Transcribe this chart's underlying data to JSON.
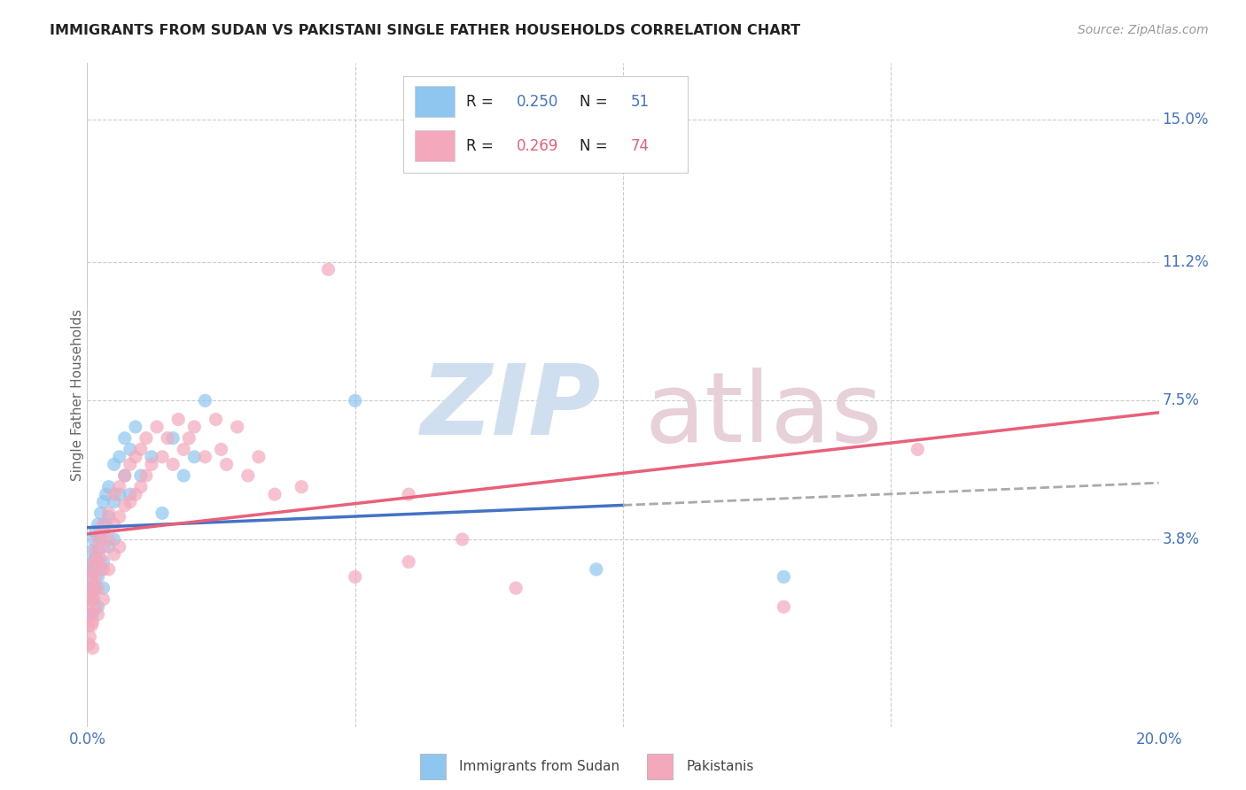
{
  "title": "IMMIGRANTS FROM SUDAN VS PAKISTANI SINGLE FATHER HOUSEHOLDS CORRELATION CHART",
  "source": "Source: ZipAtlas.com",
  "ylabel": "Single Father Households",
  "xlim": [
    0.0,
    0.2
  ],
  "ylim": [
    -0.012,
    0.165
  ],
  "xtick_positions": [
    0.0,
    0.05,
    0.1,
    0.15,
    0.2
  ],
  "xticklabels": [
    "0.0%",
    "",
    "",
    "",
    "20.0%"
  ],
  "ytick_positions": [
    0.038,
    0.075,
    0.112,
    0.15
  ],
  "ytick_labels": [
    "3.8%",
    "7.5%",
    "11.2%",
    "15.0%"
  ],
  "blue_color": "#8ec6f0",
  "pink_color": "#f4a8bb",
  "blue_line_color": "#4472c4",
  "pink_line_color": "#e8607a",
  "sudan_R": "0.250",
  "sudan_N": "51",
  "pak_R": "0.269",
  "pak_N": "74",
  "legend_text_color": "#333333",
  "legend_num_color": "#4472c4",
  "sudan_points": [
    [
      0.0002,
      0.025
    ],
    [
      0.0003,
      0.018
    ],
    [
      0.0005,
      0.03
    ],
    [
      0.0005,
      0.022
    ],
    [
      0.0008,
      0.035
    ],
    [
      0.0008,
      0.027
    ],
    [
      0.001,
      0.032
    ],
    [
      0.001,
      0.025
    ],
    [
      0.001,
      0.018
    ],
    [
      0.0012,
      0.038
    ],
    [
      0.0012,
      0.03
    ],
    [
      0.0012,
      0.022
    ],
    [
      0.0015,
      0.04
    ],
    [
      0.0015,
      0.033
    ],
    [
      0.0015,
      0.025
    ],
    [
      0.002,
      0.042
    ],
    [
      0.002,
      0.035
    ],
    [
      0.002,
      0.028
    ],
    [
      0.002,
      0.02
    ],
    [
      0.0025,
      0.045
    ],
    [
      0.0025,
      0.038
    ],
    [
      0.0025,
      0.03
    ],
    [
      0.003,
      0.048
    ],
    [
      0.003,
      0.04
    ],
    [
      0.003,
      0.032
    ],
    [
      0.003,
      0.025
    ],
    [
      0.0035,
      0.05
    ],
    [
      0.0035,
      0.042
    ],
    [
      0.004,
      0.052
    ],
    [
      0.004,
      0.044
    ],
    [
      0.004,
      0.036
    ],
    [
      0.005,
      0.058
    ],
    [
      0.005,
      0.048
    ],
    [
      0.005,
      0.038
    ],
    [
      0.006,
      0.06
    ],
    [
      0.006,
      0.05
    ],
    [
      0.007,
      0.065
    ],
    [
      0.007,
      0.055
    ],
    [
      0.008,
      0.062
    ],
    [
      0.008,
      0.05
    ],
    [
      0.009,
      0.068
    ],
    [
      0.01,
      0.055
    ],
    [
      0.012,
      0.06
    ],
    [
      0.014,
      0.045
    ],
    [
      0.016,
      0.065
    ],
    [
      0.018,
      0.055
    ],
    [
      0.02,
      0.06
    ],
    [
      0.022,
      0.075
    ],
    [
      0.05,
      0.075
    ],
    [
      0.095,
      0.03
    ],
    [
      0.13,
      0.028
    ]
  ],
  "pakistani_points": [
    [
      0.0001,
      0.02
    ],
    [
      0.0002,
      0.015
    ],
    [
      0.0003,
      0.022
    ],
    [
      0.0003,
      0.01
    ],
    [
      0.0005,
      0.025
    ],
    [
      0.0005,
      0.018
    ],
    [
      0.0005,
      0.012
    ],
    [
      0.0008,
      0.028
    ],
    [
      0.0008,
      0.022
    ],
    [
      0.0008,
      0.015
    ],
    [
      0.001,
      0.03
    ],
    [
      0.001,
      0.023
    ],
    [
      0.001,
      0.016
    ],
    [
      0.001,
      0.009
    ],
    [
      0.0012,
      0.032
    ],
    [
      0.0012,
      0.025
    ],
    [
      0.0015,
      0.035
    ],
    [
      0.0015,
      0.028
    ],
    [
      0.0015,
      0.02
    ],
    [
      0.002,
      0.038
    ],
    [
      0.002,
      0.032
    ],
    [
      0.002,
      0.025
    ],
    [
      0.002,
      0.018
    ],
    [
      0.0025,
      0.04
    ],
    [
      0.0025,
      0.033
    ],
    [
      0.003,
      0.042
    ],
    [
      0.003,
      0.036
    ],
    [
      0.003,
      0.03
    ],
    [
      0.003,
      0.022
    ],
    [
      0.004,
      0.045
    ],
    [
      0.004,
      0.038
    ],
    [
      0.004,
      0.03
    ],
    [
      0.005,
      0.05
    ],
    [
      0.005,
      0.042
    ],
    [
      0.005,
      0.034
    ],
    [
      0.006,
      0.052
    ],
    [
      0.006,
      0.044
    ],
    [
      0.006,
      0.036
    ],
    [
      0.007,
      0.055
    ],
    [
      0.007,
      0.047
    ],
    [
      0.008,
      0.058
    ],
    [
      0.008,
      0.048
    ],
    [
      0.009,
      0.06
    ],
    [
      0.009,
      0.05
    ],
    [
      0.01,
      0.062
    ],
    [
      0.01,
      0.052
    ],
    [
      0.011,
      0.065
    ],
    [
      0.011,
      0.055
    ],
    [
      0.012,
      0.058
    ],
    [
      0.013,
      0.068
    ],
    [
      0.014,
      0.06
    ],
    [
      0.015,
      0.065
    ],
    [
      0.016,
      0.058
    ],
    [
      0.017,
      0.07
    ],
    [
      0.018,
      0.062
    ],
    [
      0.019,
      0.065
    ],
    [
      0.02,
      0.068
    ],
    [
      0.022,
      0.06
    ],
    [
      0.024,
      0.07
    ],
    [
      0.025,
      0.062
    ],
    [
      0.026,
      0.058
    ],
    [
      0.028,
      0.068
    ],
    [
      0.03,
      0.055
    ],
    [
      0.032,
      0.06
    ],
    [
      0.035,
      0.05
    ],
    [
      0.04,
      0.052
    ],
    [
      0.045,
      0.11
    ],
    [
      0.05,
      0.028
    ],
    [
      0.06,
      0.032
    ],
    [
      0.08,
      0.025
    ],
    [
      0.13,
      0.02
    ],
    [
      0.155,
      0.062
    ],
    [
      0.06,
      0.05
    ],
    [
      0.07,
      0.038
    ]
  ],
  "watermark_zip_color": "#d0dff0",
  "watermark_atlas_color": "#e8d0d8"
}
